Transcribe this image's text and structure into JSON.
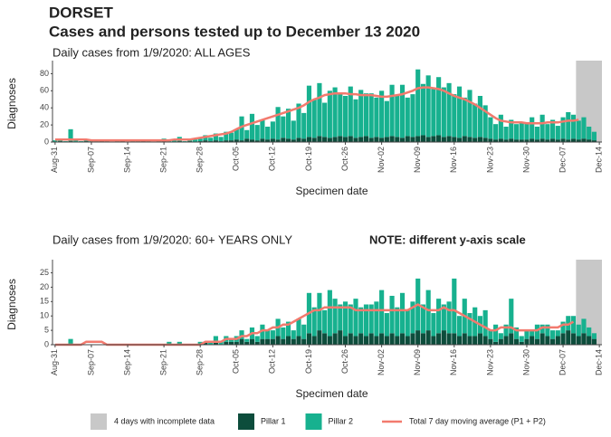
{
  "title": "DORSET",
  "subtitle": "Cases and persons tested up to December 13 2020",
  "shade_label": "4 days with incomplete data",
  "chart_data": [
    {
      "type": "bar",
      "stacked": true,
      "title": "Daily cases from 1/9/2020: ALL AGES",
      "xlabel": "Specimen date",
      "ylabel": "Diagnoses",
      "ylim": [
        0,
        90
      ],
      "yticks": [
        0,
        20,
        40,
        60,
        80
      ],
      "shade": [
        101,
        105
      ],
      "shade_color": "#c8c8c8",
      "categories": [
        "Aug-31",
        null,
        null,
        null,
        null,
        null,
        null,
        "Sep-07",
        null,
        null,
        null,
        null,
        null,
        null,
        "Sep-14",
        null,
        null,
        null,
        null,
        null,
        null,
        "Sep-21",
        null,
        null,
        null,
        null,
        null,
        null,
        "Sep-28",
        null,
        null,
        null,
        null,
        null,
        null,
        "Oct-05",
        null,
        null,
        null,
        null,
        null,
        null,
        "Oct-12",
        null,
        null,
        null,
        null,
        null,
        null,
        "Oct-19",
        null,
        null,
        null,
        null,
        null,
        null,
        "Oct-26",
        null,
        null,
        null,
        null,
        null,
        null,
        "Nov-02",
        null,
        null,
        null,
        null,
        null,
        null,
        "Nov-09",
        null,
        null,
        null,
        null,
        null,
        null,
        "Nov-16",
        null,
        null,
        null,
        null,
        null,
        null,
        "Nov-23",
        null,
        null,
        null,
        null,
        null,
        null,
        "Nov-30",
        null,
        null,
        null,
        null,
        null,
        null,
        "Dec-07",
        null,
        null,
        null,
        null,
        null,
        null,
        "Dec-14"
      ],
      "series": [
        {
          "name": "Pillar 1",
          "color": "#0d4d3c",
          "values": [
            0,
            1,
            0,
            1,
            0,
            0,
            1,
            0,
            0,
            1,
            0,
            0,
            0,
            1,
            0,
            0,
            0,
            1,
            0,
            0,
            0,
            1,
            0,
            0,
            1,
            0,
            1,
            0,
            1,
            2,
            1,
            2,
            1,
            2,
            2,
            3,
            2,
            4,
            3,
            2,
            4,
            3,
            4,
            3,
            5,
            4,
            3,
            5,
            4,
            6,
            5,
            7,
            6,
            5,
            6,
            7,
            6,
            7,
            5,
            6,
            7,
            5,
            6,
            5,
            6,
            7,
            6,
            5,
            7,
            6,
            7,
            8,
            6,
            7,
            8,
            6,
            7,
            6,
            5,
            7,
            6,
            5,
            6,
            5,
            4,
            3,
            4,
            3,
            4,
            3,
            3,
            3,
            4,
            3,
            4,
            3,
            4,
            3,
            4,
            3,
            4,
            3,
            4,
            3,
            2,
            0
          ]
        },
        {
          "name": "Pillar 2",
          "color": "#17b18f",
          "values": [
            2,
            3,
            1,
            14,
            2,
            1,
            1,
            3,
            1,
            2,
            1,
            0,
            1,
            2,
            0,
            1,
            1,
            2,
            1,
            0,
            1,
            3,
            1,
            2,
            5,
            1,
            2,
            3,
            3,
            6,
            4,
            8,
            5,
            10,
            9,
            12,
            28,
            10,
            30,
            18,
            22,
            15,
            20,
            38,
            25,
            35,
            22,
            40,
            30,
            60,
            45,
            62,
            40,
            55,
            58,
            50,
            48,
            58,
            45,
            55,
            50,
            52,
            46,
            55,
            42,
            60,
            48,
            62,
            45,
            50,
            78,
            60,
            72,
            55,
            68,
            58,
            62,
            50,
            60,
            45,
            55,
            40,
            48,
            38,
            25,
            18,
            28,
            15,
            22,
            18,
            20,
            20,
            25,
            15,
            28,
            18,
            22,
            16,
            25,
            32,
            28,
            22,
            25,
            15,
            10,
            0
          ]
        },
        {
          "name": "Total 7 day moving average (P1 + P2)",
          "type": "line",
          "color": "#f27a6e",
          "values": [
            3,
            3,
            3,
            3,
            3,
            3,
            3,
            2,
            2,
            2,
            2,
            2,
            2,
            2,
            2,
            2,
            2,
            2,
            2,
            2,
            2,
            2,
            2,
            3,
            3,
            3,
            3,
            4,
            5,
            6,
            7,
            8,
            9,
            10,
            12,
            15,
            18,
            20,
            22,
            24,
            26,
            28,
            30,
            32,
            34,
            36,
            38,
            40,
            43,
            47,
            50,
            52,
            55,
            56,
            57,
            57,
            57,
            56,
            56,
            55,
            55,
            55,
            54,
            53,
            53,
            54,
            55,
            56,
            58,
            60,
            63,
            64,
            64,
            63,
            62,
            60,
            57,
            54,
            52,
            50,
            47,
            44,
            40,
            36,
            32,
            28,
            25,
            24,
            23,
            23,
            23,
            22,
            22,
            22,
            22,
            23,
            23,
            23,
            24,
            25,
            25,
            26,
            null,
            null,
            null,
            null
          ]
        }
      ]
    },
    {
      "type": "bar",
      "stacked": true,
      "title": "Daily cases from 1/9/2020: 60+ YEARS ONLY",
      "note": "NOTE: different y-axis scale",
      "xlabel": "Specimen date",
      "ylabel": "Diagnoses",
      "ylim": [
        0,
        28
      ],
      "yticks": [
        0,
        5,
        10,
        15,
        20,
        25
      ],
      "shade": [
        101,
        105
      ],
      "shade_color": "#c8c8c8",
      "categories": [
        "Aug-31",
        null,
        null,
        null,
        null,
        null,
        null,
        "Sep-07",
        null,
        null,
        null,
        null,
        null,
        null,
        "Sep-14",
        null,
        null,
        null,
        null,
        null,
        null,
        "Sep-21",
        null,
        null,
        null,
        null,
        null,
        null,
        "Sep-28",
        null,
        null,
        null,
        null,
        null,
        null,
        "Oct-05",
        null,
        null,
        null,
        null,
        null,
        null,
        "Oct-12",
        null,
        null,
        null,
        null,
        null,
        null,
        "Oct-19",
        null,
        null,
        null,
        null,
        null,
        null,
        "Oct-26",
        null,
        null,
        null,
        null,
        null,
        null,
        "Nov-02",
        null,
        null,
        null,
        null,
        null,
        null,
        "Nov-09",
        null,
        null,
        null,
        null,
        null,
        null,
        "Nov-16",
        null,
        null,
        null,
        null,
        null,
        null,
        "Nov-23",
        null,
        null,
        null,
        null,
        null,
        null,
        "Nov-30",
        null,
        null,
        null,
        null,
        null,
        null,
        "Dec-07",
        null,
        null,
        null,
        null,
        null,
        null,
        "Dec-14"
      ],
      "series": [
        {
          "name": "Pillar 1",
          "color": "#0d4d3c",
          "values": [
            0,
            0,
            0,
            0,
            0,
            0,
            0,
            0,
            0,
            0,
            0,
            0,
            0,
            0,
            0,
            0,
            0,
            0,
            0,
            0,
            0,
            0,
            0,
            0,
            0,
            0,
            0,
            0,
            0,
            1,
            0,
            1,
            0,
            1,
            1,
            1,
            2,
            1,
            2,
            1,
            2,
            2,
            2,
            3,
            2,
            3,
            2,
            3,
            2,
            4,
            3,
            5,
            4,
            3,
            4,
            5,
            3,
            4,
            3,
            4,
            3,
            4,
            3,
            4,
            3,
            4,
            3,
            4,
            3,
            4,
            5,
            4,
            5,
            3,
            4,
            5,
            4,
            4,
            3,
            4,
            3,
            3,
            4,
            3,
            2,
            1,
            2,
            3,
            4,
            2,
            1,
            2,
            3,
            2,
            4,
            3,
            2,
            3,
            4,
            5,
            4,
            3,
            4,
            3,
            2,
            0
          ]
        },
        {
          "name": "Pillar 2",
          "color": "#17b18f",
          "values": [
            0,
            0,
            0,
            2,
            0,
            0,
            0,
            0,
            0,
            0,
            0,
            0,
            0,
            0,
            0,
            0,
            0,
            0,
            0,
            0,
            0,
            0,
            1,
            0,
            1,
            0,
            0,
            0,
            1,
            0,
            1,
            2,
            1,
            2,
            1,
            2,
            3,
            1,
            4,
            2,
            5,
            3,
            3,
            6,
            4,
            5,
            3,
            6,
            5,
            14,
            10,
            13,
            8,
            16,
            12,
            9,
            12,
            10,
            13,
            9,
            11,
            10,
            12,
            15,
            8,
            13,
            10,
            14,
            9,
            11,
            18,
            10,
            14,
            8,
            12,
            9,
            11,
            19,
            7,
            12,
            8,
            10,
            6,
            9,
            3,
            6,
            2,
            4,
            12,
            4,
            2,
            3,
            2,
            5,
            3,
            4,
            3,
            2,
            4,
            5,
            6,
            4,
            5,
            3,
            2,
            0
          ]
        },
        {
          "name": "Total 7 day moving average (P1 + P2)",
          "type": "line",
          "color": "#f27a6e",
          "values": [
            0,
            0,
            0,
            0,
            0,
            0,
            1,
            1,
            1,
            1,
            0,
            0,
            0,
            0,
            0,
            0,
            0,
            0,
            0,
            0,
            0,
            0,
            0,
            0,
            0,
            0,
            0,
            0,
            0,
            1,
            1,
            1,
            1,
            2,
            2,
            2,
            3,
            3,
            4,
            4,
            5,
            5,
            6,
            6,
            7,
            7,
            8,
            9,
            10,
            11,
            12,
            12,
            13,
            13,
            13,
            13,
            13,
            13,
            12,
            12,
            12,
            12,
            12,
            12,
            12,
            12,
            12,
            12,
            12,
            13,
            14,
            13,
            12,
            12,
            12,
            13,
            12,
            12,
            11,
            10,
            9,
            8,
            7,
            6,
            5,
            5,
            6,
            6,
            6,
            5,
            5,
            5,
            5,
            5,
            6,
            6,
            6,
            6,
            7,
            7,
            8,
            null,
            null,
            null,
            null,
            null
          ]
        }
      ]
    }
  ]
}
